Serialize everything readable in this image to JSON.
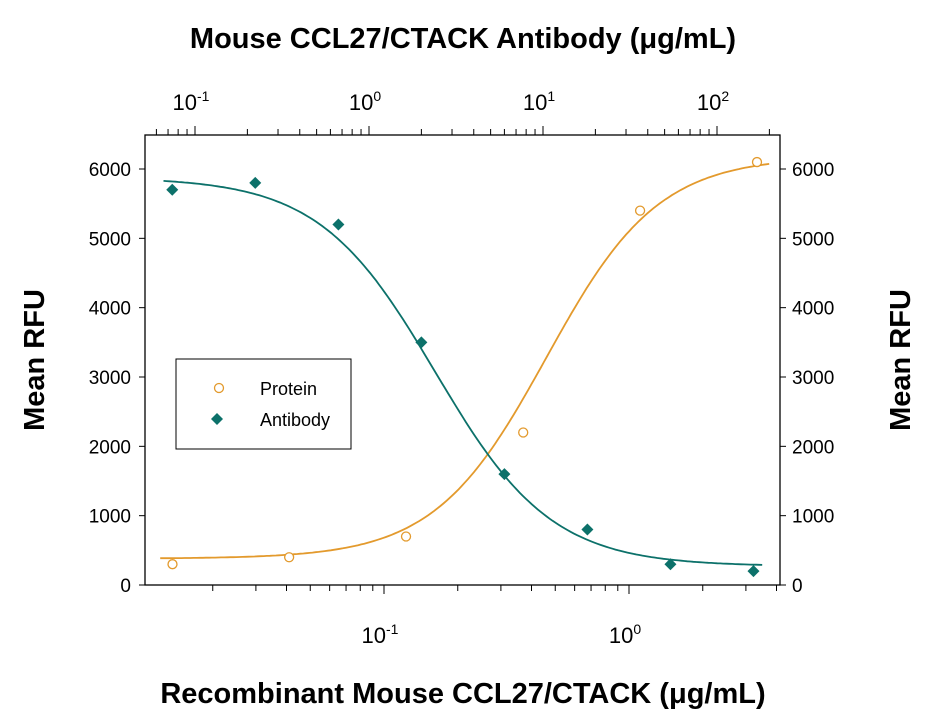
{
  "chart_data": {
    "type": "scatter",
    "title": "Mouse CCL27/CTACK Antibody (μg/mL)",
    "xlabel": "Recombinant Mouse CCL27/CTACK (μg/mL)",
    "ylabel": "Mean RFU",
    "ylabel_right": "Mean RFU",
    "x_scale": "log",
    "x_top_scale": "log",
    "ylim": [
      0,
      6000
    ],
    "yticks": [
      "0",
      "1000",
      "2000",
      "3000",
      "4000",
      "5000",
      "6000"
    ],
    "xticks_bottom": [
      {
        "base": "10",
        "exp": "-1",
        "value": 0.1
      },
      {
        "base": "10",
        "exp": "0",
        "value": 1
      }
    ],
    "xticks_top": [
      {
        "base": "10",
        "exp": "-1",
        "value": 0.1
      },
      {
        "base": "10",
        "exp": "0",
        "value": 1
      },
      {
        "base": "10",
        "exp": "1",
        "value": 10
      },
      {
        "base": "10",
        "exp": "2",
        "value": 100
      }
    ],
    "xlim_bottom": [
      0.0115,
      4.1
    ],
    "xlim_top": [
      0.058,
      230
    ],
    "grid": false,
    "legend_position": "center-left",
    "series": [
      {
        "name": "Protein",
        "axis": "bottom",
        "marker": "open-circle",
        "color": "#E39A2D",
        "x": [
          0.0137,
          0.041,
          0.123,
          0.37,
          1.11,
          3.33
        ],
        "y": [
          300,
          400,
          700,
          2200,
          5400,
          6100
        ],
        "fit": {
          "model": "4PL",
          "bottom": 380,
          "top": 6180,
          "ec50": 0.46,
          "hill": 1.9
        }
      },
      {
        "name": "Antibody",
        "axis": "top",
        "marker": "filled-diamond",
        "color": "#0C716A",
        "x": [
          0.074,
          0.222,
          0.667,
          2,
          6,
          18,
          54,
          162
        ],
        "y": [
          5700,
          5800,
          5200,
          3500,
          1600,
          800,
          300,
          200
        ],
        "fit": {
          "model": "4PL",
          "bottom": 270,
          "top": 5880,
          "ec50": 2.4,
          "hill": 1.3
        }
      }
    ]
  }
}
